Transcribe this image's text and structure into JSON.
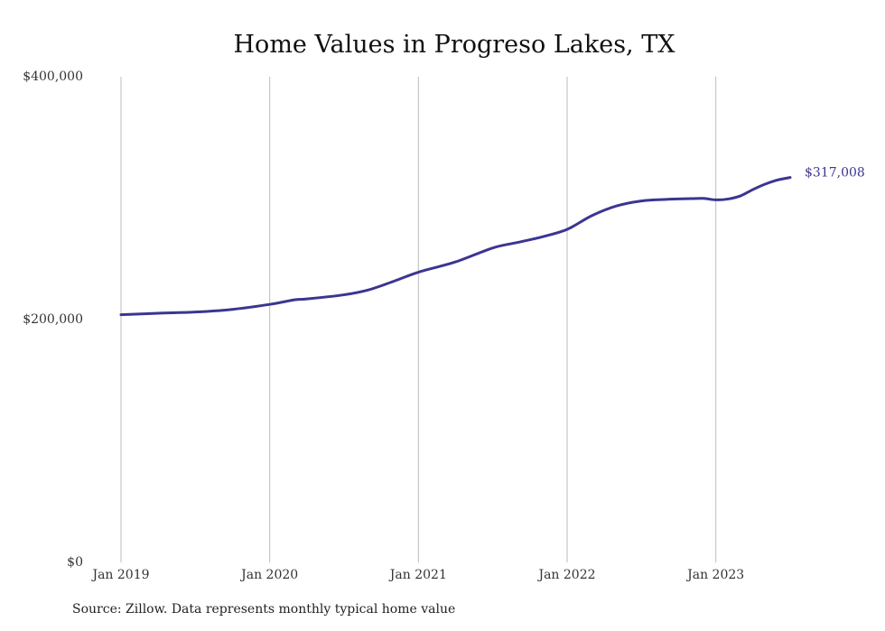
{
  "chart_data": {
    "type": "line",
    "title": "Home Values in Progreso Lakes, TX",
    "xlabel": "",
    "ylabel": "",
    "ylim": [
      0,
      400000
    ],
    "xlim": [
      "2019-01",
      "2023-07"
    ],
    "y_ticks": [
      {
        "value": 0,
        "label": "$0"
      },
      {
        "value": 200000,
        "label": "$200,000"
      },
      {
        "value": 400000,
        "label": "$400,000"
      }
    ],
    "x_ticks": [
      {
        "value": "2019-01",
        "label": "Jan 2019"
      },
      {
        "value": "2020-01",
        "label": "Jan 2020"
      },
      {
        "value": "2021-01",
        "label": "Jan 2021"
      },
      {
        "value": "2022-01",
        "label": "Jan 2022"
      },
      {
        "value": "2023-01",
        "label": "Jan 2023"
      }
    ],
    "grid": "vertical",
    "series": [
      {
        "color": "#3b3592",
        "end_label": "$317,008",
        "points": [
          {
            "x": "2019-01",
            "y": 204000
          },
          {
            "x": "2019-04",
            "y": 205200
          },
          {
            "x": "2019-07",
            "y": 206200
          },
          {
            "x": "2019-10",
            "y": 208400
          },
          {
            "x": "2020-01",
            "y": 212500
          },
          {
            "x": "2020-03",
            "y": 216300
          },
          {
            "x": "2020-04",
            "y": 217000
          },
          {
            "x": "2020-07",
            "y": 220400
          },
          {
            "x": "2020-09",
            "y": 224500
          },
          {
            "x": "2020-11",
            "y": 231500
          },
          {
            "x": "2021-01",
            "y": 239000
          },
          {
            "x": "2021-04",
            "y": 247500
          },
          {
            "x": "2021-07",
            "y": 259000
          },
          {
            "x": "2021-09",
            "y": 263500
          },
          {
            "x": "2021-11",
            "y": 268200
          },
          {
            "x": "2022-01",
            "y": 274300
          },
          {
            "x": "2022-03",
            "y": 285600
          },
          {
            "x": "2022-05",
            "y": 293600
          },
          {
            "x": "2022-07",
            "y": 297700
          },
          {
            "x": "2022-09",
            "y": 299000
          },
          {
            "x": "2022-11",
            "y": 299600
          },
          {
            "x": "2022-12",
            "y": 299800
          },
          {
            "x": "2023-01",
            "y": 298600
          },
          {
            "x": "2023-02",
            "y": 299300
          },
          {
            "x": "2023-03",
            "y": 301900
          },
          {
            "x": "2023-04",
            "y": 307100
          },
          {
            "x": "2023-05",
            "y": 311600
          },
          {
            "x": "2023-06",
            "y": 315000
          },
          {
            "x": "2023-07",
            "y": 317008
          }
        ]
      }
    ]
  },
  "source_note": "Source: Zillow. Data represents monthly typical home value"
}
